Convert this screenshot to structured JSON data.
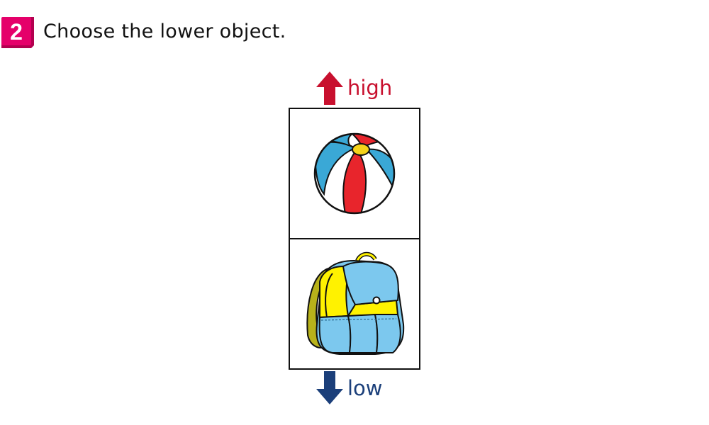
{
  "question": {
    "number": "2",
    "text": "Choose the lower object."
  },
  "scale": {
    "high_label": "high",
    "low_label": "low"
  },
  "options": [
    {
      "name": "beach-ball",
      "position": "top"
    },
    {
      "name": "backpack",
      "position": "bottom"
    }
  ],
  "colors": {
    "badge": "#e5006a",
    "high": "#c8102e",
    "low": "#1b3f7a",
    "ball_blue": "#3aa8d6",
    "ball_red": "#e8252c",
    "ball_yellow": "#f5d31a",
    "bag_blue": "#7cc8ee",
    "bag_yellow": "#fff200",
    "strap_olive": "#b8b21a"
  }
}
